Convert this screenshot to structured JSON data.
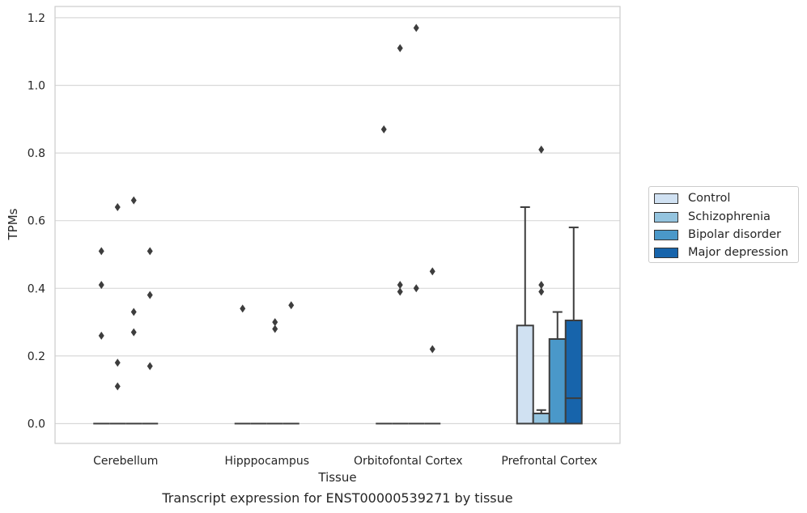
{
  "chart_data": {
    "type": "box",
    "title": "",
    "xlabel": "Tissue",
    "ylabel": "TPMs",
    "caption": "Transcript expression for ENST00000539271 by tissue",
    "ylim": [
      -0.06,
      1.23
    ],
    "yticks": [
      "0.0",
      "0.2",
      "0.4",
      "0.6",
      "0.8",
      "1.0",
      "1.2"
    ],
    "grid": true,
    "legend_position": "right",
    "categories": [
      "Cerebellum",
      "Hipppocampus",
      "Orbitofontal Cortex",
      "Prefrontal Cortex"
    ],
    "series": [
      {
        "name": "Control",
        "color": "#d0e1f2"
      },
      {
        "name": "Schizophrenia",
        "color": "#94c4df"
      },
      {
        "name": "Bipolar disorder",
        "color": "#4a98c9"
      },
      {
        "name": "Major depression",
        "color": "#1764ab"
      }
    ],
    "boxes": [
      {
        "category": "Cerebellum",
        "series": "Control",
        "min": 0,
        "q1": 0,
        "median": 0,
        "q3": 0,
        "max": 0,
        "outliers": [
          0.26,
          0.41,
          0.51
        ]
      },
      {
        "category": "Cerebellum",
        "series": "Schizophrenia",
        "min": 0,
        "q1": 0,
        "median": 0,
        "q3": 0,
        "max": 0,
        "outliers": [
          0.11,
          0.18,
          0.64
        ]
      },
      {
        "category": "Cerebellum",
        "series": "Bipolar disorder",
        "min": 0,
        "q1": 0,
        "median": 0,
        "q3": 0,
        "max": 0,
        "outliers": [
          0.27,
          0.33,
          0.66
        ]
      },
      {
        "category": "Cerebellum",
        "series": "Major depression",
        "min": 0,
        "q1": 0,
        "median": 0,
        "q3": 0,
        "max": 0,
        "outliers": [
          0.17,
          0.38,
          0.51
        ]
      },
      {
        "category": "Hipppocampus",
        "series": "Control",
        "min": 0,
        "q1": 0,
        "median": 0,
        "q3": 0,
        "max": 0,
        "outliers": [
          0.34
        ]
      },
      {
        "category": "Hipppocampus",
        "series": "Schizophrenia",
        "min": 0,
        "q1": 0,
        "median": 0,
        "q3": 0,
        "max": 0,
        "outliers": []
      },
      {
        "category": "Hipppocampus",
        "series": "Bipolar disorder",
        "min": 0,
        "q1": 0,
        "median": 0,
        "q3": 0,
        "max": 0,
        "outliers": [
          0.28,
          0.3
        ]
      },
      {
        "category": "Hipppocampus",
        "series": "Major depression",
        "min": 0,
        "q1": 0,
        "median": 0,
        "q3": 0,
        "max": 0,
        "outliers": [
          0.35
        ]
      },
      {
        "category": "Orbitofontal Cortex",
        "series": "Control",
        "min": 0,
        "q1": 0,
        "median": 0,
        "q3": 0,
        "max": 0,
        "outliers": [
          0.87
        ]
      },
      {
        "category": "Orbitofontal Cortex",
        "series": "Schizophrenia",
        "min": 0,
        "q1": 0,
        "median": 0,
        "q3": 0,
        "max": 0,
        "outliers": [
          0.39,
          0.41,
          1.11
        ]
      },
      {
        "category": "Orbitofontal Cortex",
        "series": "Bipolar disorder",
        "min": 0,
        "q1": 0,
        "median": 0,
        "q3": 0,
        "max": 0,
        "outliers": [
          0.4,
          1.17
        ]
      },
      {
        "category": "Orbitofontal Cortex",
        "series": "Major depression",
        "min": 0,
        "q1": 0,
        "median": 0,
        "q3": 0,
        "max": 0,
        "outliers": [
          0.22,
          0.45
        ]
      },
      {
        "category": "Prefrontal Cortex",
        "series": "Control",
        "min": 0,
        "q1": 0,
        "median": 0,
        "q3": 0.29,
        "max": 0.64,
        "outliers": []
      },
      {
        "category": "Prefrontal Cortex",
        "series": "Schizophrenia",
        "min": 0,
        "q1": 0,
        "median": 0.03,
        "q3": 0.03,
        "max": 0.04,
        "outliers": [
          0.39,
          0.41,
          0.81
        ]
      },
      {
        "category": "Prefrontal Cortex",
        "series": "Bipolar disorder",
        "min": 0,
        "q1": 0,
        "median": 0,
        "q3": 0.25,
        "max": 0.33,
        "outliers": []
      },
      {
        "category": "Prefrontal Cortex",
        "series": "Major depression",
        "min": 0,
        "q1": 0,
        "median": 0.075,
        "q3": 0.305,
        "max": 0.58,
        "outliers": []
      }
    ]
  }
}
